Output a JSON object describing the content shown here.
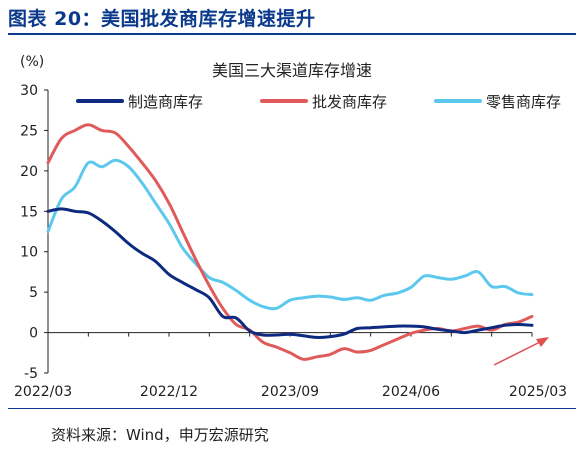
{
  "header": {
    "title": "图表 20：美国批发商库存增速提升"
  },
  "footer": {
    "source": "资料来源：Wind，申万宏源研究"
  },
  "colors": {
    "title": "#0b3a8c",
    "arrow": "#e05050"
  },
  "chart_data": {
    "type": "line",
    "title": "美国三大渠道库存增速",
    "unit_label": "(%)",
    "xlabel": "",
    "ylabel": "",
    "ylim": [
      -5,
      30
    ],
    "yticks": [
      -5,
      0,
      5,
      10,
      15,
      20,
      25,
      30
    ],
    "grid": false,
    "legend_position": "top",
    "x": [
      "2022/03",
      "2022/04",
      "2022/05",
      "2022/06",
      "2022/07",
      "2022/08",
      "2022/09",
      "2022/10",
      "2022/11",
      "2022/12",
      "2023/01",
      "2023/02",
      "2023/03",
      "2023/04",
      "2023/05",
      "2023/06",
      "2023/07",
      "2023/08",
      "2023/09",
      "2023/10",
      "2023/11",
      "2023/12",
      "2024/01",
      "2024/02",
      "2024/03",
      "2024/04",
      "2024/05",
      "2024/06",
      "2024/07",
      "2024/08",
      "2024/09",
      "2024/10",
      "2024/11",
      "2024/12",
      "2025/01",
      "2025/02",
      "2025/03"
    ],
    "xtick_labels": [
      "2022/03",
      "2022/12",
      "2023/09",
      "2024/06",
      "2025/03"
    ],
    "series": [
      {
        "name": "制造商库存",
        "color": "#0d2a80",
        "values": [
          15.0,
          15.3,
          15.0,
          14.8,
          13.8,
          12.5,
          11.0,
          9.8,
          8.8,
          7.2,
          6.2,
          5.3,
          4.3,
          2.0,
          1.8,
          0.2,
          -0.3,
          -0.3,
          -0.2,
          -0.4,
          -0.6,
          -0.5,
          -0.2,
          0.5,
          0.6,
          0.7,
          0.8,
          0.8,
          0.7,
          0.4,
          0.2,
          0.0,
          0.3,
          0.6,
          0.9,
          1.0,
          0.9
        ]
      },
      {
        "name": "批发商库存",
        "color": "#e05a5a",
        "values": [
          21.0,
          24.0,
          25.0,
          25.7,
          25.0,
          24.7,
          23.0,
          21.0,
          18.8,
          16.0,
          12.5,
          9.0,
          5.8,
          3.0,
          1.0,
          0.3,
          -1.2,
          -1.8,
          -2.5,
          -3.3,
          -3.0,
          -2.7,
          -2.0,
          -2.4,
          -2.2,
          -1.5,
          -0.8,
          -0.1,
          0.3,
          0.5,
          0.2,
          0.5,
          0.8,
          0.3,
          1.0,
          1.3,
          2.0
        ]
      },
      {
        "name": "零售商库存",
        "color": "#5cc8ee",
        "values": [
          12.5,
          16.5,
          18.0,
          21.0,
          20.5,
          21.3,
          20.5,
          18.5,
          16.0,
          13.5,
          10.5,
          8.5,
          6.8,
          6.2,
          5.2,
          4.0,
          3.2,
          3.0,
          4.0,
          4.3,
          4.5,
          4.4,
          4.1,
          4.3,
          4.0,
          4.6,
          4.9,
          5.6,
          7.0,
          6.8,
          6.6,
          7.0,
          7.5,
          5.7,
          5.7,
          4.9,
          4.7
        ]
      }
    ]
  }
}
